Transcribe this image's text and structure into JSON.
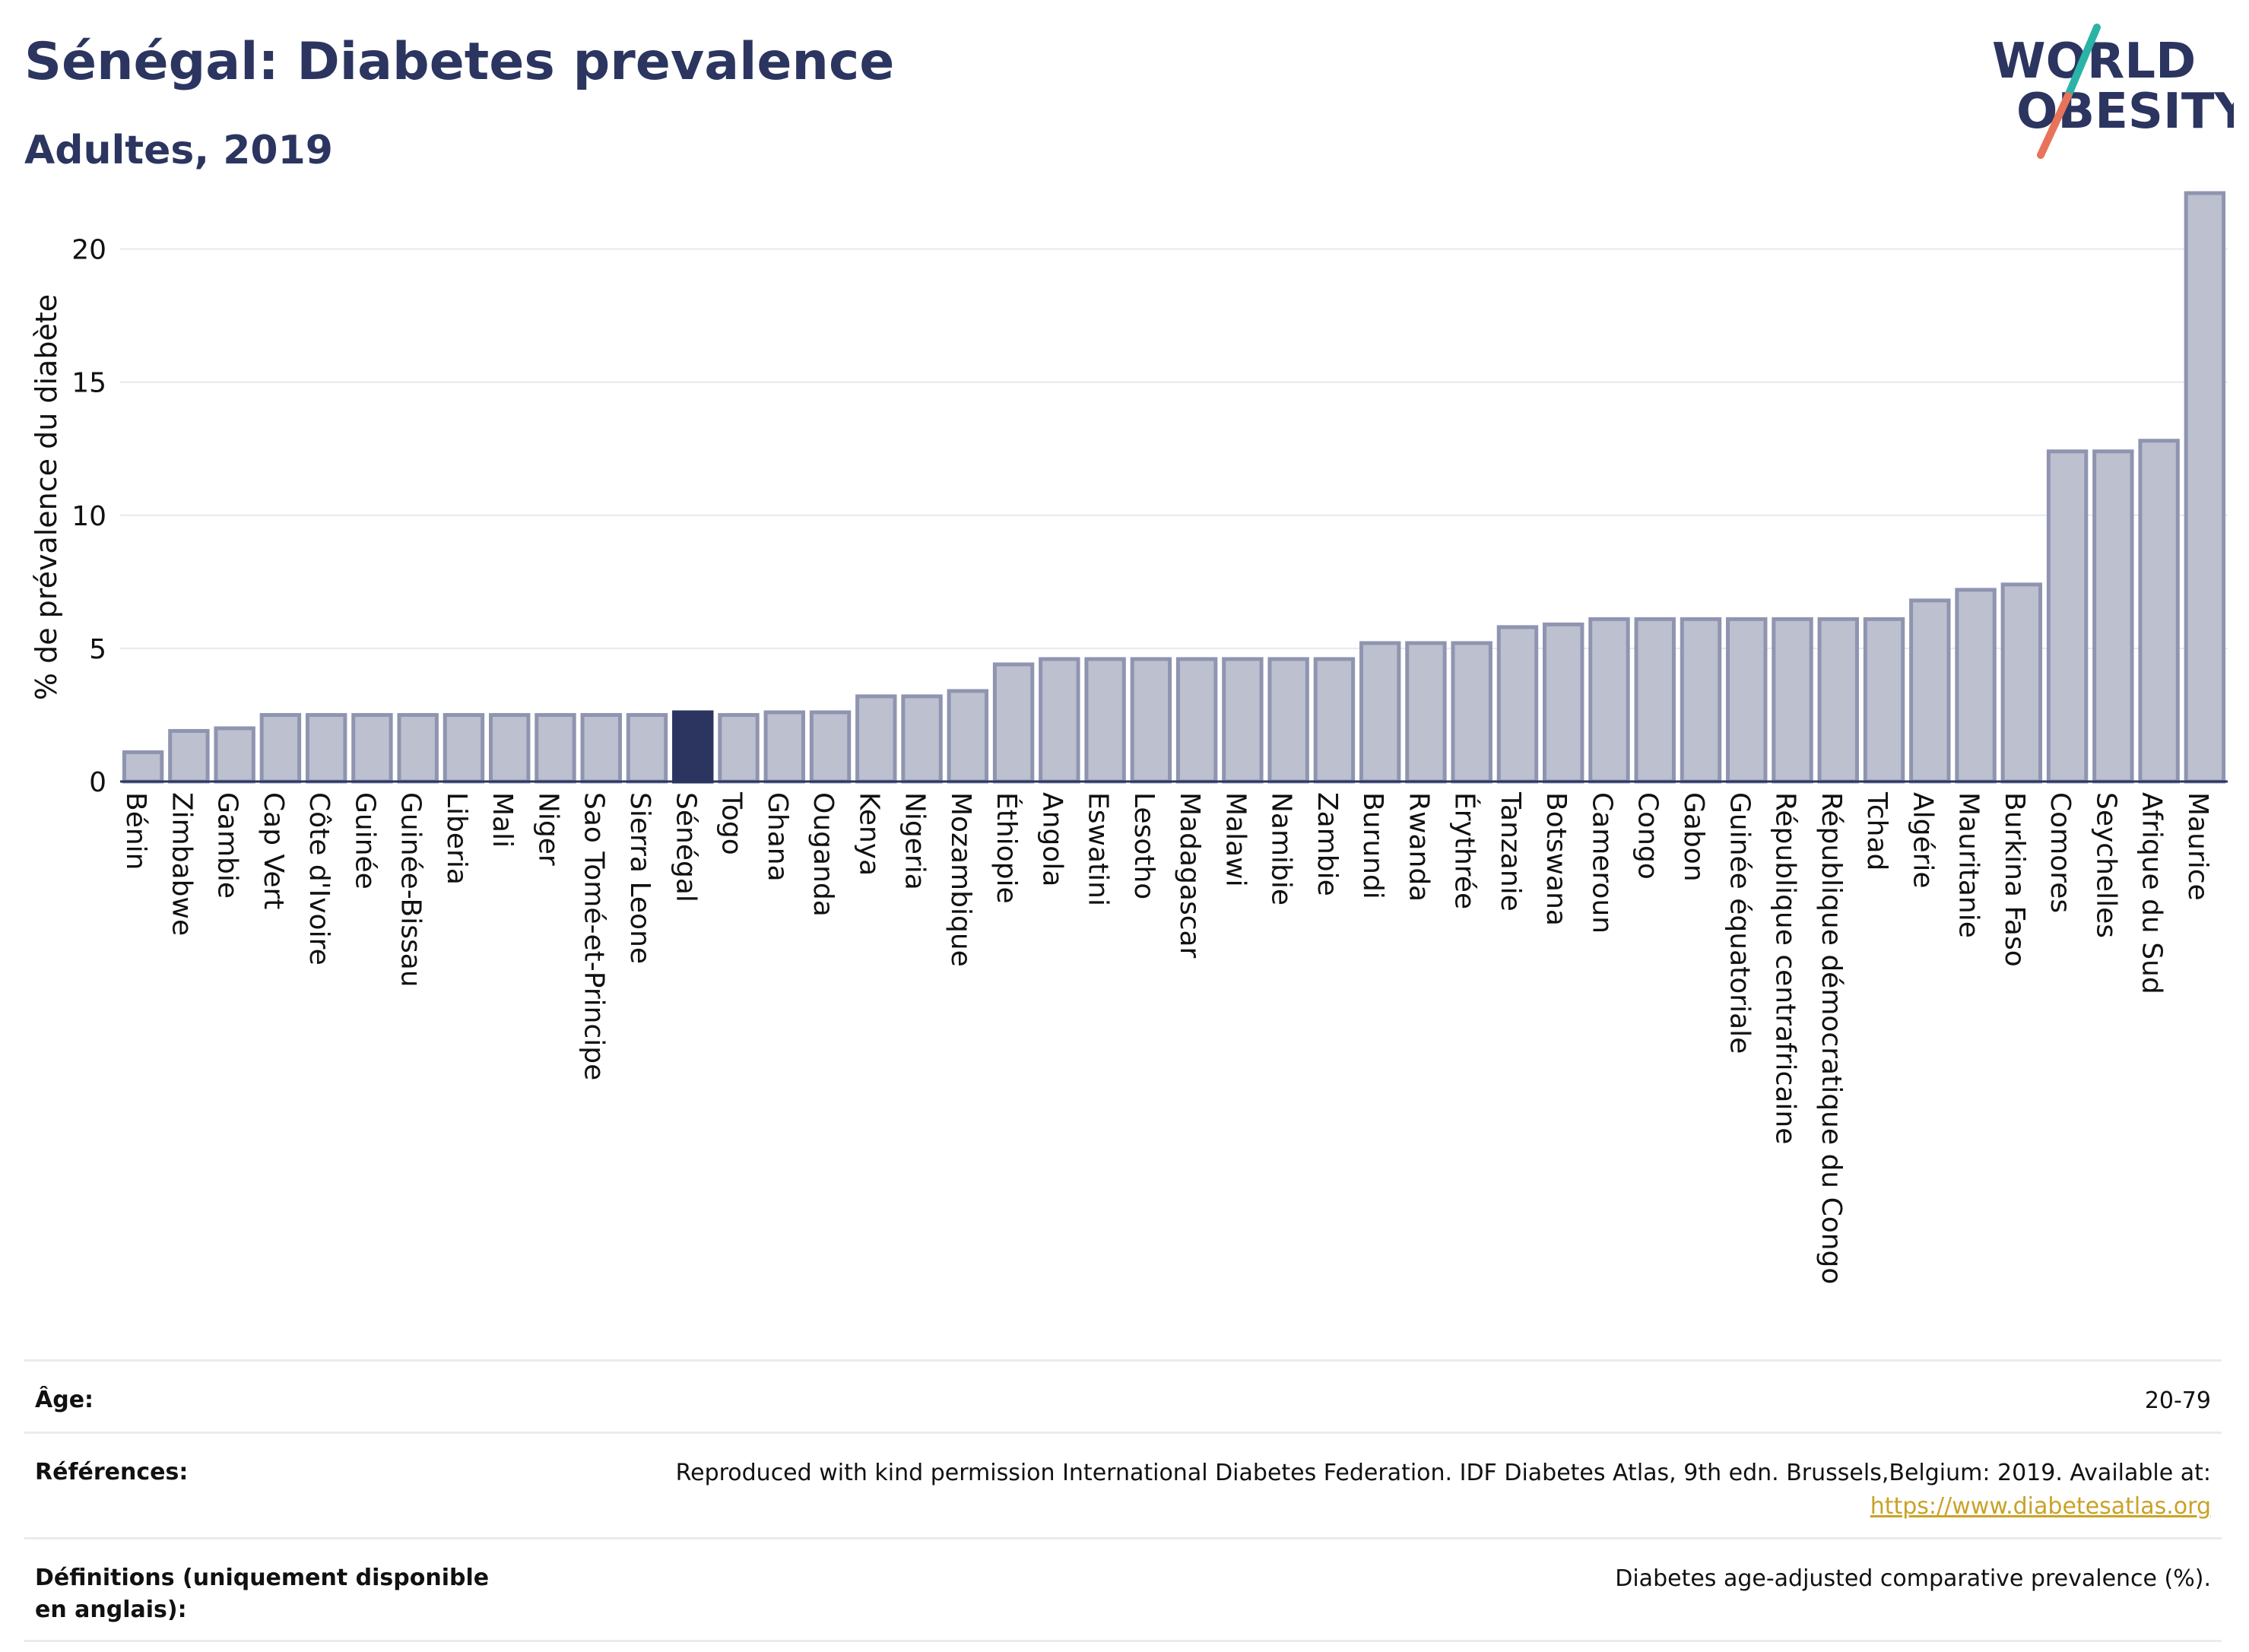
{
  "header": {
    "title": "Sénégal: Diabetes prevalence",
    "subtitle": "Adultes, 2019"
  },
  "logo": {
    "line1": "WORLD",
    "line2": "OBESITY",
    "color": "#2b3560",
    "slash_colors": [
      "#2bb3a8",
      "#e8735a"
    ]
  },
  "colors": {
    "bar": "#bcc0cf",
    "bar_border": "#8f95b0",
    "highlight": "#2b3560",
    "axis_text": "#111111",
    "grid": "#e6e8ee"
  },
  "chart_data": {
    "type": "bar",
    "ylabel": "% de prévalence du diabète",
    "ylim": [
      0,
      22.5
    ],
    "yticks": [
      0,
      5,
      10,
      15,
      20
    ],
    "grid": true,
    "highlight": "Sénégal",
    "categories": [
      "Bénin",
      "Zimbabwe",
      "Gambie",
      "Cap Vert",
      "Côte d'Ivoire",
      "Guinée",
      "Guinée-Bissau",
      "Liberia",
      "Mali",
      "Niger",
      "Sao Tomé-et-Principe",
      "Sierra Leone",
      "Sénégal",
      "Togo",
      "Ghana",
      "Ouganda",
      "Kenya",
      "Nigeria",
      "Mozambique",
      "Éthiopie",
      "Angola",
      "Eswatini",
      "Lesotho",
      "Madagascar",
      "Malawi",
      "Namibie",
      "Zambie",
      "Burundi",
      "Rwanda",
      "Érythrée",
      "Tanzanie",
      "Botswana",
      "Cameroun",
      "Congo",
      "Gabon",
      "Guinée équatoriale",
      "République centrafricaine",
      "République démocratique du Congo",
      "Tchad",
      "Algérie",
      "Mauritanie",
      "Burkina Faso",
      "Comores",
      "Seychelles",
      "Afrique du Sud",
      "Maurice"
    ],
    "values": [
      1.1,
      1.9,
      2.0,
      2.5,
      2.5,
      2.5,
      2.5,
      2.5,
      2.5,
      2.5,
      2.5,
      2.5,
      2.6,
      2.5,
      2.6,
      2.6,
      3.2,
      3.2,
      3.4,
      4.4,
      4.6,
      4.6,
      4.6,
      4.6,
      4.6,
      4.6,
      4.6,
      5.2,
      5.2,
      5.2,
      5.8,
      5.9,
      6.1,
      6.1,
      6.1,
      6.1,
      6.1,
      6.1,
      6.1,
      6.8,
      7.2,
      7.4,
      12.4,
      12.4,
      12.8,
      22.1
    ]
  },
  "details": {
    "age_label": "Âge:",
    "age_value": "20-79",
    "references_label": "Références:",
    "references_text": "Reproduced with kind permission International Diabetes Federation. IDF Diabetes Atlas, 9th edn. Brussels,Belgium: 2019. Available at:",
    "references_link": "https://www.diabetesatlas.org",
    "definitions_label": "Définitions (uniquement disponible en anglais):",
    "definitions_value": "Diabetes age-adjusted comparative prevalence (%)."
  }
}
